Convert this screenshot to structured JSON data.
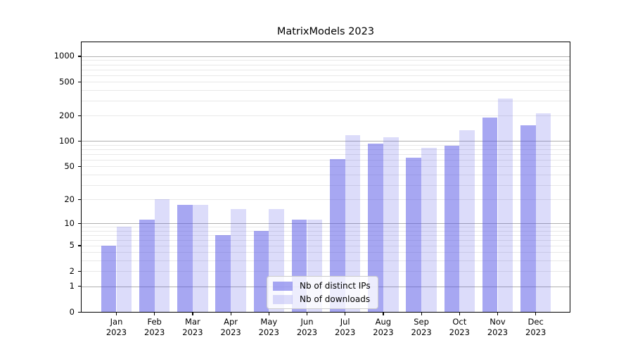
{
  "chart_data": {
    "type": "bar",
    "title": "MatrixModels 2023",
    "categories": [
      "Jan 2023",
      "Feb 2023",
      "Mar 2023",
      "Apr 2023",
      "May 2023",
      "Jun 2023",
      "Jul 2023",
      "Aug 2023",
      "Sep 2023",
      "Oct 2023",
      "Nov 2023",
      "Dec 2023"
    ],
    "series": [
      {
        "name": "Nb of distinct IPs",
        "values": [
          5,
          11,
          17,
          7,
          8,
          11,
          61,
          93,
          63,
          89,
          190,
          154
        ],
        "fill": "rgba(80,80,230,0.5)"
      },
      {
        "name": "Nb of downloads",
        "values": [
          9,
          20,
          17,
          15,
          15,
          11,
          118,
          112,
          84,
          135,
          317,
          214
        ],
        "fill": "rgba(80,80,230,0.2)"
      }
    ],
    "yscale": "log10(1+v)",
    "ylim": [
      0,
      1460
    ],
    "yticks": [
      0,
      1,
      2,
      5,
      10,
      20,
      50,
      100,
      200,
      500,
      1000
    ],
    "gridlines": {
      "major": [
        1,
        10,
        100,
        1000
      ],
      "minor": [
        2,
        3,
        4,
        5,
        6,
        7,
        8,
        9,
        20,
        30,
        40,
        50,
        60,
        70,
        80,
        90,
        200,
        300,
        400,
        500,
        600,
        700,
        800,
        900
      ]
    },
    "legend_position": "lower-center",
    "colors": {
      "grid_major": "#b0b0b0",
      "grid_minor": "#e8e8e8",
      "axis": "#000000",
      "text": "#000000",
      "legend_bg": "rgba(255,255,255,0.8)",
      "legend_border": "#cccccc"
    }
  }
}
